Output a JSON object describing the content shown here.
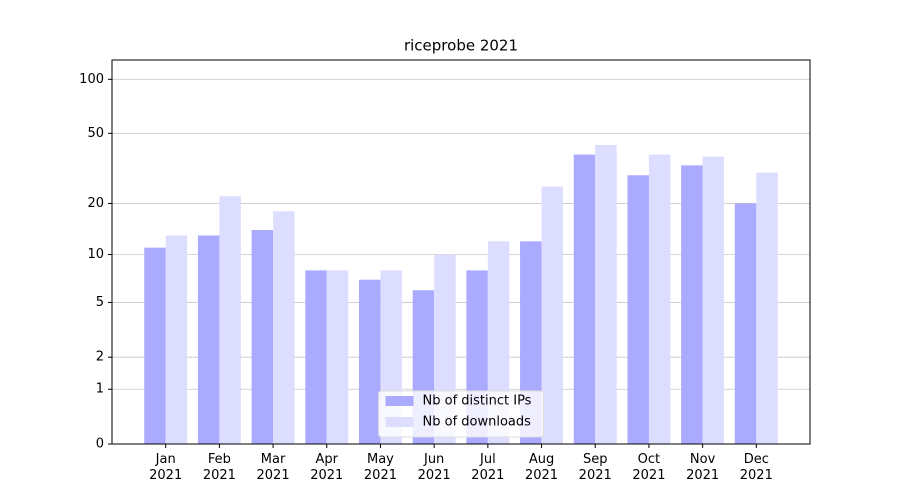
{
  "chart_data": {
    "type": "bar",
    "title": "riceprobe 2021",
    "categories": [
      "Jan\n2021",
      "Feb\n2021",
      "Mar\n2021",
      "Apr\n2021",
      "May\n2021",
      "Jun\n2021",
      "Jul\n2021",
      "Aug\n2021",
      "Sep\n2021",
      "Oct\n2021",
      "Nov\n2021",
      "Dec\n2021"
    ],
    "series": [
      {
        "name": "Nb of distinct IPs",
        "color": "#aaaaff",
        "values": [
          11,
          13,
          14,
          8,
          7,
          6,
          8,
          12,
          38,
          29,
          33,
          20
        ]
      },
      {
        "name": "Nb of downloads",
        "color": "#ddddff",
        "values": [
          13,
          22,
          18,
          8,
          8,
          10,
          12,
          25,
          43,
          38,
          37,
          30
        ]
      }
    ],
    "yscale": "log1p",
    "ylim": [
      0,
      128
    ],
    "yticks": [
      0,
      1,
      2,
      5,
      10,
      20,
      50,
      100
    ],
    "grid": true,
    "legend": "lower center"
  }
}
